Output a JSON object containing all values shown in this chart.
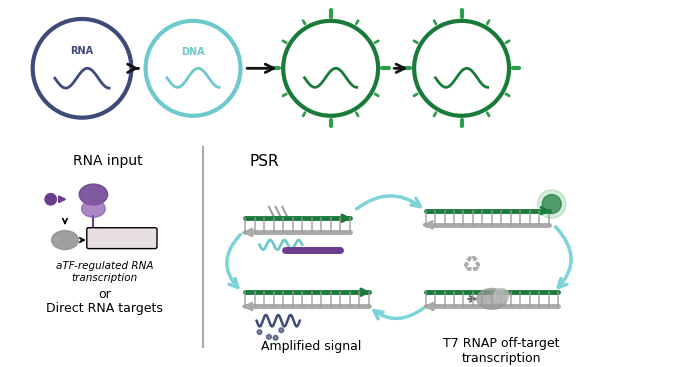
{
  "bg_color": "#ffffff",
  "dark_blue": "#3d4a7a",
  "light_teal": "#6ec8cc",
  "dark_green": "#1a7a3a",
  "mid_green": "#2d9e4e",
  "light_green": "#90c990",
  "purple": "#6a3d8f",
  "gray": "#aaaaaa",
  "light_gray": "#d8d8d8",
  "arrow_color": "#111111",
  "circle_bg": "#ffffff",
  "psr_arrow_color": "#7dd4d8",
  "label_rna": "RNA",
  "label_dna": "DNA",
  "label_rna_input": "RNA input",
  "label_psr": "PSR",
  "label_atf": "aTF-regulated RNA\ntranscription",
  "label_or": "or",
  "label_direct": "Direct RNA targets",
  "label_amp": "Amplified signal",
  "label_t7": "T7 RNAP off-target\ntranscription",
  "font_size_label": 9,
  "font_size_circle": 8,
  "fig_width": 6.85,
  "fig_height": 3.67
}
